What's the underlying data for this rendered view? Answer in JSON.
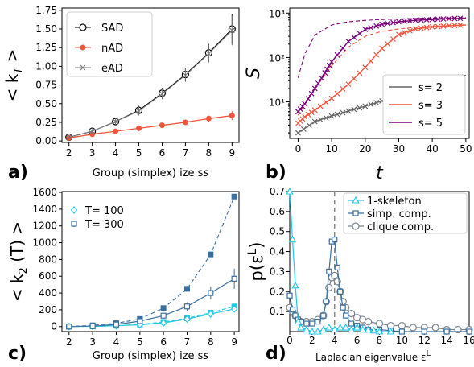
{
  "chart_data": [
    {
      "panel": "a)",
      "type": "line",
      "xlabel": "Group (simplex) size s",
      "ylabel": "< k_T >",
      "xlim": [
        1.7,
        9.3
      ],
      "ylim": [
        -0.02,
        1.78
      ],
      "xticks": [
        2,
        3,
        4,
        5,
        6,
        7,
        8,
        9
      ],
      "yticks": [
        0.0,
        0.25,
        0.5,
        0.75,
        1.0,
        1.25,
        1.5,
        1.75
      ],
      "ytick_labels": [
        "0.00",
        "0.25",
        "0.50",
        "0.75",
        "1.00",
        "1.25",
        "1.50",
        "1.75"
      ],
      "legend_position": "upper-left",
      "series": [
        {
          "name": "SAD",
          "color": "#000000",
          "marker": "open-circle",
          "x": [
            2,
            3,
            4,
            5,
            6,
            7,
            8,
            9
          ],
          "y": [
            0.05,
            0.13,
            0.26,
            0.41,
            0.64,
            0.89,
            1.18,
            1.5
          ],
          "err": [
            0.02,
            0.03,
            0.04,
            0.06,
            0.07,
            0.09,
            0.12,
            0.2
          ]
        },
        {
          "name": "nAD",
          "color": "#f0543c",
          "marker": "dot",
          "x": [
            2,
            3,
            4,
            5,
            6,
            7,
            8,
            9
          ],
          "y": [
            0.04,
            0.09,
            0.13,
            0.17,
            0.21,
            0.25,
            0.3,
            0.34
          ],
          "err": [
            0.01,
            0.015,
            0.02,
            0.02,
            0.025,
            0.03,
            0.04,
            0.06
          ]
        },
        {
          "name": "eAD",
          "color": "#777777",
          "marker": "x",
          "x": [
            2,
            3,
            4,
            5,
            6,
            7,
            8,
            9
          ],
          "y": [
            0.05,
            0.13,
            0.26,
            0.4,
            0.63,
            0.88,
            1.17,
            1.48
          ],
          "err": [
            0.02,
            0.03,
            0.04,
            0.06,
            0.07,
            0.09,
            0.12,
            0.2
          ]
        }
      ]
    },
    {
      "panel": "b)",
      "type": "line",
      "xlabel": "t",
      "ylabel": "S",
      "yscale": "log",
      "xlim": [
        -2.5,
        51
      ],
      "ylim": [
        1.5,
        1300
      ],
      "xticks": [
        0,
        10,
        20,
        30,
        40,
        50
      ],
      "yticks": [
        10,
        100,
        1000
      ],
      "ytick_labels": [
        "10¹",
        "10²",
        "10³"
      ],
      "legend_position": "lower-right",
      "series": [
        {
          "name": "s= 2",
          "color": "#666666",
          "x": [
            0,
            5,
            10,
            15,
            20,
            25,
            30,
            35,
            40,
            45,
            50
          ],
          "y": [
            2.0,
            3.6,
            4.8,
            6.2,
            8.0,
            10.5,
            14,
            18.5,
            24,
            31,
            40
          ],
          "dashed_x": [
            0,
            5,
            10,
            15,
            20,
            25,
            30,
            35,
            40,
            45,
            50
          ],
          "dashed_y": [
            2.0,
            3.6,
            4.8,
            6.2,
            8.0,
            10.5,
            14,
            18.5,
            24,
            31,
            40
          ]
        },
        {
          "name": "s= 3",
          "color": "#f0543c",
          "x": [
            0,
            2,
            5,
            10,
            15,
            20,
            25,
            30,
            35,
            40,
            45,
            50
          ],
          "y": [
            3.3,
            4.6,
            6.5,
            12,
            25,
            60,
            160,
            330,
            440,
            490,
            520,
            540
          ],
          "dashed_x": [
            0,
            2,
            5,
            10,
            15,
            20,
            25,
            30,
            35,
            40,
            45,
            50
          ],
          "dashed_y": [
            5,
            9,
            20,
            65,
            170,
            300,
            390,
            440,
            480,
            500,
            520,
            540
          ]
        },
        {
          "name": "s= 5",
          "color": "#7a007a",
          "x": [
            0,
            2,
            5,
            8,
            10,
            15,
            20,
            25,
            30,
            35,
            40,
            45,
            50
          ],
          "y": [
            6,
            9,
            20,
            45,
            80,
            230,
            430,
            560,
            640,
            690,
            720,
            750,
            770
          ],
          "dashed_x": [
            0,
            2,
            5,
            10,
            15,
            20,
            25,
            30,
            35,
            40,
            45,
            50
          ],
          "dashed_y": [
            35,
            120,
            320,
            540,
            640,
            690,
            720,
            740,
            760,
            770,
            780,
            790
          ]
        }
      ]
    },
    {
      "panel": "c)",
      "type": "line",
      "xlabel": "Group (simplex) size s",
      "ylabel": "< k_2 (T) >",
      "xlim": [
        1.7,
        9.2
      ],
      "ylim": [
        -60,
        1610
      ],
      "xticks": [
        2,
        3,
        4,
        5,
        6,
        7,
        8,
        9
      ],
      "yticks": [
        0,
        200,
        400,
        600,
        800,
        1000,
        1200,
        1400,
        1600
      ],
      "legend_position": "upper-left",
      "series": [
        {
          "name": "T= 100",
          "color": "#1ec8e6",
          "marker": "open-diamond",
          "x": [
            2,
            3,
            4,
            5,
            6,
            7,
            8,
            9
          ],
          "y": [
            0,
            3,
            10,
            22,
            45,
            90,
            150,
            210
          ],
          "err": [
            0,
            1,
            2,
            5,
            10,
            20,
            30,
            40
          ],
          "dashed_y": [
            0,
            3,
            10,
            25,
            55,
            100,
            165,
            240
          ]
        },
        {
          "name": "T= 300",
          "color": "#3a6f9e",
          "marker": "open-square",
          "x": [
            2,
            3,
            4,
            5,
            6,
            7,
            8,
            9
          ],
          "y": [
            0,
            5,
            25,
            65,
            130,
            240,
            400,
            570
          ],
          "err": [
            0,
            2,
            8,
            15,
            30,
            50,
            75,
            120
          ],
          "dashed_y": [
            0,
            15,
            40,
            90,
            220,
            450,
            860,
            1550
          ]
        }
      ]
    },
    {
      "panel": "d)",
      "type": "line",
      "xlabel": "Laplacian eigenvalue ε^L",
      "ylabel": "p(ε^L)",
      "xlim": [
        0,
        16
      ],
      "ylim": [
        0,
        0.7
      ],
      "xticks": [
        0,
        2,
        4,
        6,
        8,
        10,
        12,
        14,
        16
      ],
      "yticks": [
        0.1,
        0.2,
        0.3,
        0.4,
        0.5,
        0.6,
        0.7
      ],
      "ytick_labels": [
        "0.1",
        "0.2",
        "0.3",
        "0.4",
        "0.5",
        "0.6",
        "0.7"
      ],
      "vline_x": 4,
      "legend_position": "upper-right",
      "series": [
        {
          "name": "1-skeleton",
          "color": "#1ec8e6",
          "marker": "open-triangle",
          "x": [
            0.0,
            0.25,
            0.5,
            0.75,
            1.0,
            1.5,
            2.0,
            2.5,
            3.0,
            3.5,
            4.0,
            4.5,
            5.0,
            5.5,
            6.0,
            6.5,
            7.0,
            7.5,
            8.0,
            9.0
          ],
          "y": [
            0.7,
            0.46,
            0.23,
            0.05,
            0.02,
            0.01,
            0.0,
            0.0,
            0.01,
            0.02,
            0.01,
            0.02,
            0.02,
            0.01,
            0.02,
            0.01,
            0.01,
            0.005,
            0.0,
            0.0
          ]
        },
        {
          "name": "simp. comp.",
          "color": "#3a6f9e",
          "marker": "open-square",
          "x": [
            0.0,
            0.25,
            0.5,
            0.75,
            1.0,
            1.5,
            2.0,
            2.5,
            3.0,
            3.25,
            3.5,
            3.75,
            4.0,
            4.25,
            4.5,
            4.75,
            5.0,
            5.5,
            6.0,
            6.5,
            7.0,
            8.0,
            9.0,
            10.0,
            12.0,
            14.0,
            16.0
          ],
          "y": [
            0.18,
            0.11,
            0.08,
            0.06,
            0.05,
            0.04,
            0.04,
            0.05,
            0.08,
            0.15,
            0.3,
            0.45,
            0.46,
            0.32,
            0.2,
            0.12,
            0.08,
            0.04,
            0.03,
            0.02,
            0.01,
            0.01,
            0.005,
            0.0,
            0.0,
            0.0,
            0.0
          ]
        },
        {
          "name": "clique comp.",
          "color": "#7a8590",
          "marker": "open-circle",
          "x": [
            0.0,
            0.25,
            0.5,
            0.75,
            1.0,
            1.5,
            2.0,
            2.5,
            3.0,
            3.25,
            3.5,
            3.75,
            4.0,
            4.25,
            4.5,
            4.75,
            5.0,
            5.5,
            6.0,
            6.5,
            7.0,
            8.0,
            9.0,
            10.0,
            11.0,
            12.0,
            13.0,
            14.0,
            15.0,
            16.0
          ],
          "y": [
            0.12,
            0.1,
            0.08,
            0.06,
            0.05,
            0.05,
            0.05,
            0.06,
            0.08,
            0.15,
            0.22,
            0.27,
            0.28,
            0.25,
            0.2,
            0.15,
            0.12,
            0.09,
            0.07,
            0.06,
            0.05,
            0.04,
            0.03,
            0.03,
            0.02,
            0.02,
            0.02,
            0.01,
            0.01,
            0.01
          ]
        }
      ]
    }
  ]
}
